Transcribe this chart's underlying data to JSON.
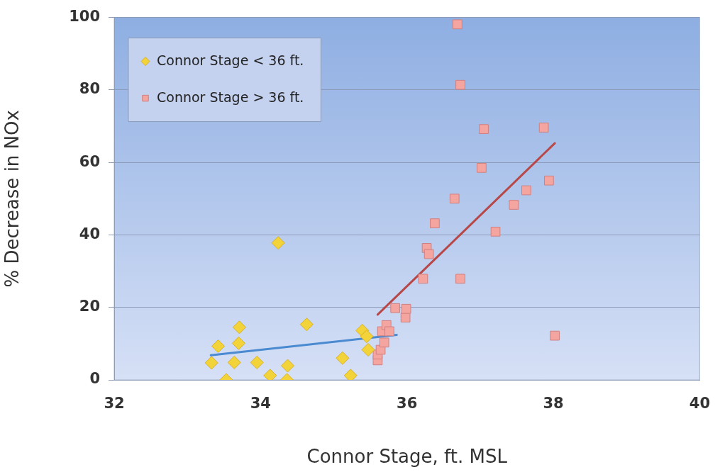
{
  "chart_data": {
    "type": "scatter",
    "xlabel": "Connor Stage, ft. MSL",
    "ylabel": "% Decrease in NOx",
    "xlim": [
      32,
      40
    ],
    "xticks": [
      32,
      34,
      36,
      38,
      40
    ],
    "ylim": [
      0,
      100
    ],
    "yticks": [
      0,
      20,
      40,
      60,
      80,
      100
    ],
    "grid": "y",
    "legend": "top left",
    "series": [
      {
        "name": "Connor Stage < 36 ft.",
        "color": "#f2d43a",
        "marker": "diamond",
        "x": [
          33.33,
          33.42,
          33.53,
          33.64,
          33.7,
          33.71,
          33.95,
          34.13,
          34.24,
          34.36,
          34.37,
          34.63,
          35.12,
          35.23,
          35.39,
          35.45,
          35.47
        ],
        "values": [
          4.7,
          9.3,
          0,
          4.8,
          10.1,
          14.5,
          4.8,
          1.2,
          37.8,
          0,
          3.9,
          15.3,
          6,
          1.2,
          13.6,
          12,
          8.3
        ]
      },
      {
        "name": "Connor Stage > 36 ft.",
        "color": "#f4a5a0",
        "marker": "square",
        "x": [
          35.6,
          35.6,
          35.64,
          35.66,
          35.69,
          35.72,
          35.76,
          35.84,
          35.98,
          35.99,
          36.22,
          36.27,
          36.3,
          36.35,
          36.38,
          36.65,
          36.69,
          36.73,
          36.73,
          37.02,
          37.05,
          37.21,
          37.46,
          37.63,
          37.87,
          37.94,
          38.02
        ],
        "values": [
          5.4,
          7,
          8.3,
          13.4,
          10.3,
          15.1,
          13.4,
          19.8,
          17.2,
          19.6,
          27.9,
          36.4,
          34.7,
          null,
          43.2,
          50,
          98.1,
          81.4,
          27.9,
          58.5,
          69.2,
          40.9,
          48.3,
          52.3,
          69.6,
          55,
          12.2
        ]
      },
      {
        "type": "line",
        "color": "#4a8ad0",
        "marker": "none",
        "x": [
          33.32,
          35.86
        ],
        "values": [
          6.8,
          12.4
        ]
      },
      {
        "type": "line",
        "color": "#b84848",
        "marker": "none",
        "x": [
          35.6,
          38.02
        ],
        "values": [
          18,
          65.3
        ]
      }
    ]
  }
}
